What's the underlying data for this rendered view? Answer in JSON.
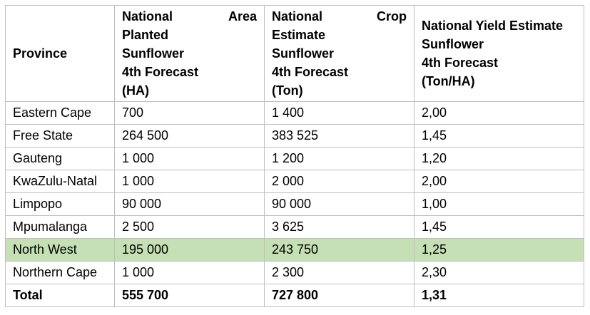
{
  "table": {
    "headers": {
      "province": "Province",
      "area": {
        "line1_left": "National",
        "line1_right": "Area",
        "line2": "Planted",
        "line3": "Sunflower",
        "line4": "4th Forecast",
        "line5": "(HA)"
      },
      "crop": {
        "line1_left": "National",
        "line1_right": "Crop",
        "line2": "Estimate",
        "line3": "Sunflower",
        "line4": "4th Forecast",
        "line5": "(Ton)"
      },
      "yield": {
        "line1": "National Yield Estimate",
        "line2": "Sunflower",
        "line3": "4th Forecast",
        "line4": "(Ton/HA)"
      }
    },
    "rows": [
      {
        "province": "Eastern Cape",
        "area": "700",
        "crop": "1 400",
        "yield": "2,00"
      },
      {
        "province": "Free State",
        "area": "264 500",
        "crop": "383 525",
        "yield": "1,45"
      },
      {
        "province": "Gauteng",
        "area": "1 000",
        "crop": "1 200",
        "yield": "1,20"
      },
      {
        "province": "KwaZulu-Natal",
        "area": "1 000",
        "crop": "2 000",
        "yield": "2,00"
      },
      {
        "province": "Limpopo",
        "area": "90 000",
        "crop": "90 000",
        "yield": "1,00"
      },
      {
        "province": "Mpumalanga",
        "area": "2 500",
        "crop": "3 625",
        "yield": "1,45"
      },
      {
        "province": "North West",
        "area": "195 000",
        "crop": "243 750",
        "yield": "1,25"
      },
      {
        "province": "Northern Cape",
        "area": "1 000",
        "crop": "2 300",
        "yield": "2,30"
      }
    ],
    "total": {
      "province": "Total",
      "area": "555 700",
      "crop": "727 800",
      "yield": "1,31"
    },
    "highlight_color": "#c5e0b4",
    "border_color": "#bfbfbf"
  }
}
